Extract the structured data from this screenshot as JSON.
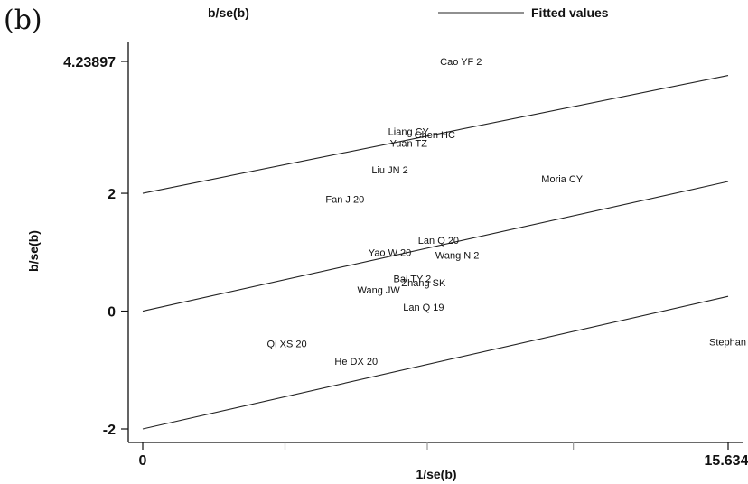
{
  "panel_label": "(b)",
  "legend": {
    "scatter_label": "b/se(b)",
    "line_label": "Fitted values"
  },
  "chart_data": {
    "type": "scatter",
    "title": "",
    "xlabel": "1/se(b)",
    "ylabel": "b/se(b)",
    "xlim": [
      0,
      15.634
    ],
    "ylim": [
      -2,
      4.23897
    ],
    "x_tick_labels": [
      "0",
      "15.634"
    ],
    "y_tick_labels": [
      "4.23897",
      "2",
      "0",
      "-2"
    ],
    "y_ticks": [
      4.23897,
      2,
      0,
      -2
    ],
    "x_ticks": [
      0,
      3.8,
      7.6,
      11.5,
      15.634
    ],
    "grid": false,
    "legend_position": "top",
    "fitted_lines": [
      {
        "name": "upper",
        "x": [
          0,
          15.634
        ],
        "y": [
          2,
          4.0
        ]
      },
      {
        "name": "fitted",
        "x": [
          0,
          15.634
        ],
        "y": [
          0,
          2.2
        ]
      },
      {
        "name": "lower",
        "x": [
          0,
          15.634
        ],
        "y": [
          -2,
          0.25
        ]
      }
    ],
    "points": [
      {
        "label": "Cao YF 2",
        "x": 8.5,
        "y": 4.23897
      },
      {
        "label": "Liang CY",
        "x": 7.1,
        "y": 3.05
      },
      {
        "label": "Chen HC",
        "x": 7.8,
        "y": 3.0
      },
      {
        "label": "Yuan TZ",
        "x": 7.1,
        "y": 2.85
      },
      {
        "label": "Liu JN 2",
        "x": 6.6,
        "y": 2.4
      },
      {
        "label": "Moria CY",
        "x": 11.2,
        "y": 2.25
      },
      {
        "label": "Fan J 20",
        "x": 5.4,
        "y": 1.9
      },
      {
        "label": "Lan Q 20",
        "x": 7.9,
        "y": 1.2
      },
      {
        "label": "Yao W 20",
        "x": 6.6,
        "y": 1.0
      },
      {
        "label": "Wang N 2",
        "x": 8.4,
        "y": 0.95
      },
      {
        "label": "Bai TY 2",
        "x": 7.2,
        "y": 0.55
      },
      {
        "label": "Zhang SK",
        "x": 7.5,
        "y": 0.48
      },
      {
        "label": "Wang JW",
        "x": 6.3,
        "y": 0.36
      },
      {
        "label": "Lan Q 19",
        "x": 7.5,
        "y": 0.07
      },
      {
        "label": "Qi XS 20",
        "x": 3.85,
        "y": -0.55
      },
      {
        "label": "He DX 20",
        "x": 5.7,
        "y": -0.85
      },
      {
        "label": "Stephan",
        "x": 15.634,
        "y": -0.52
      }
    ]
  }
}
